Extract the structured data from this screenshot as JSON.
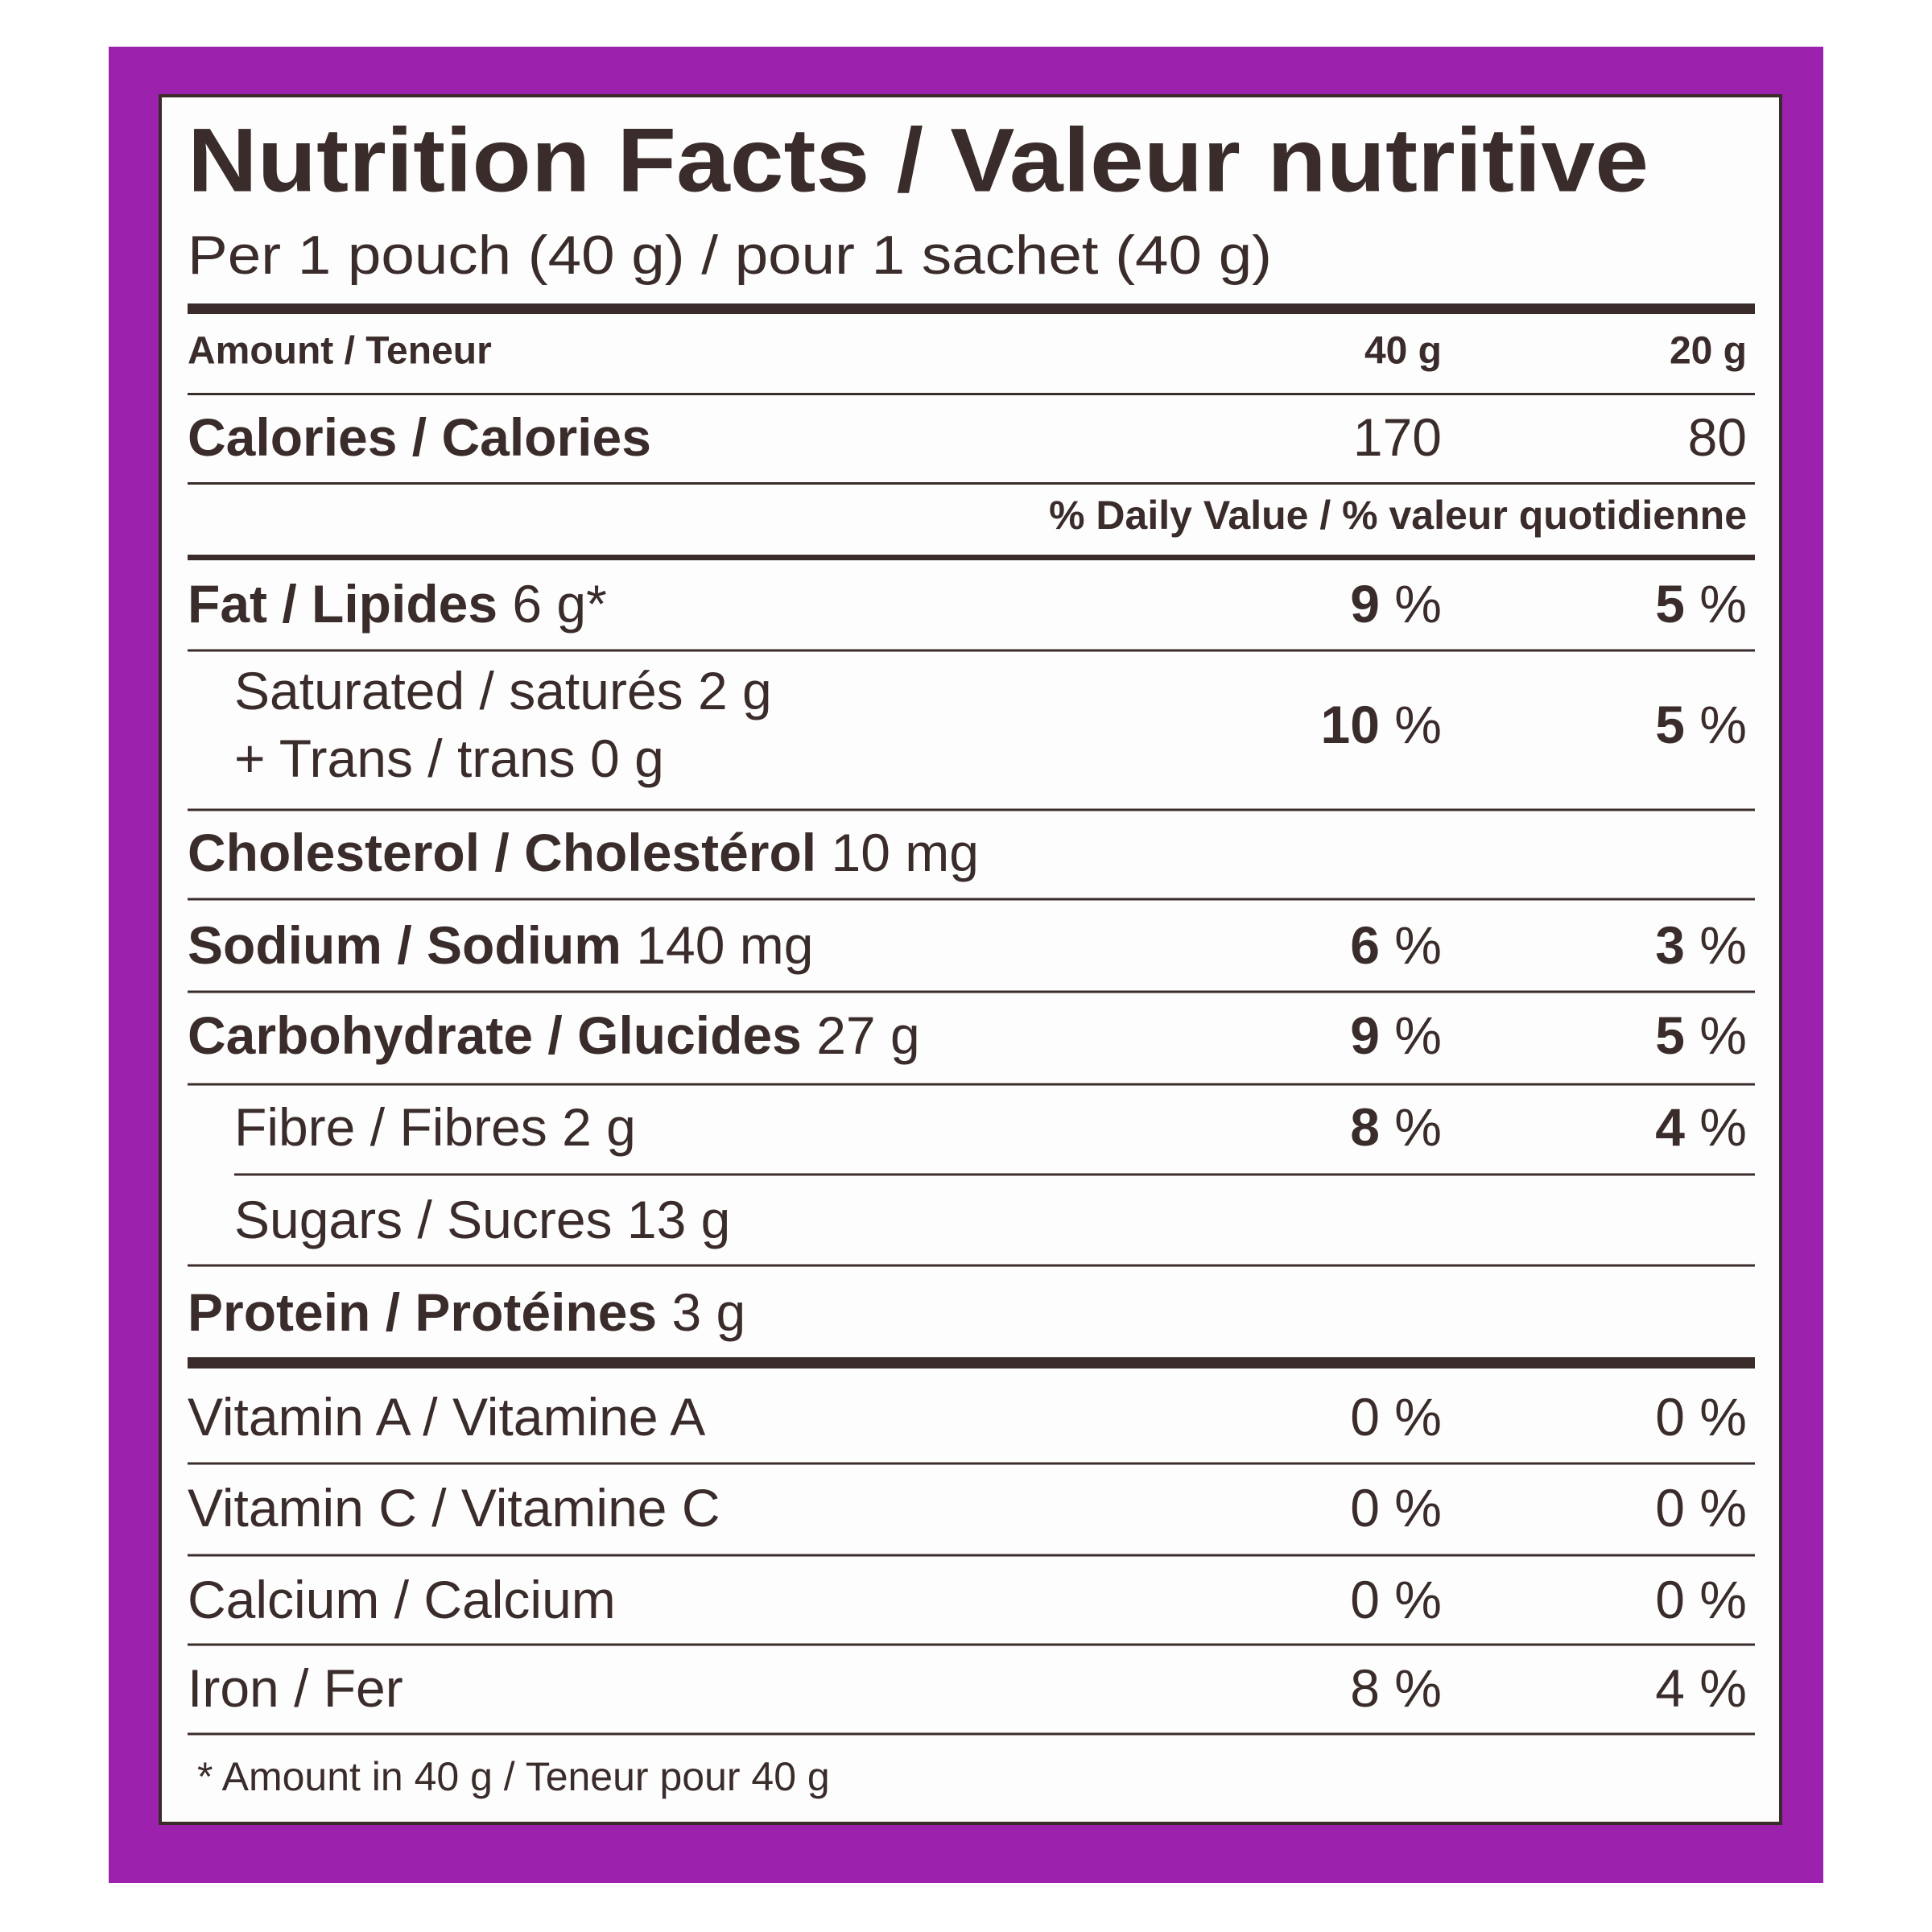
{
  "header": {
    "title": "Nutrition Facts / Valeur nutritive",
    "serving": "Per 1 pouch (40 g) / pour 1 sachet (40 g)"
  },
  "columns": {
    "label": "Amount / Teneur",
    "amounts": [
      "40 g",
      "20 g"
    ]
  },
  "calories": {
    "label": "Calories / Calories",
    "values": [
      "170",
      "80"
    ]
  },
  "dv_heading": "% Daily Value / % valeur quotidienne",
  "nutrients": [
    {
      "name": "Fat / Lipides",
      "amount": "6 g*",
      "dv": [
        "9 %",
        "5 %"
      ]
    },
    {
      "lines": [
        "Saturated / saturés 2 g",
        "+ Trans / trans 0 g"
      ],
      "dv": [
        "10 %",
        "5 %"
      ]
    },
    {
      "name": "Cholesterol / Cholestérol",
      "amount": "10 mg"
    },
    {
      "name": "Sodium / Sodium",
      "amount": "140 mg",
      "dv": [
        "6 %",
        "3 %"
      ]
    },
    {
      "name": "Carbohydrate / Glucides",
      "amount": "27 g",
      "dv": [
        "9 %",
        "5 %"
      ]
    },
    {
      "lines": [
        "Fibre / Fibres 2 g"
      ],
      "dv": [
        "8 %",
        "4 %"
      ]
    },
    {
      "lines": [
        "Sugars / Sucres 13 g"
      ]
    },
    {
      "name": "Protein / Protéines",
      "amount": "3 g"
    }
  ],
  "vitamins_minerals": [
    {
      "name": "Vitamin A / Vitamine A",
      "dv": [
        "0 %",
        "0 %"
      ]
    },
    {
      "name": "Vitamin C / Vitamine C",
      "dv": [
        "0 %",
        "0 %"
      ]
    },
    {
      "name": "Calcium / Calcium",
      "dv": [
        "0 %",
        "0 %"
      ]
    },
    {
      "name": "Iron / Fer",
      "dv": [
        "8 %",
        "4 %"
      ]
    }
  ],
  "footnote": "* Amount in 40 g / Teneur pour 40 g"
}
